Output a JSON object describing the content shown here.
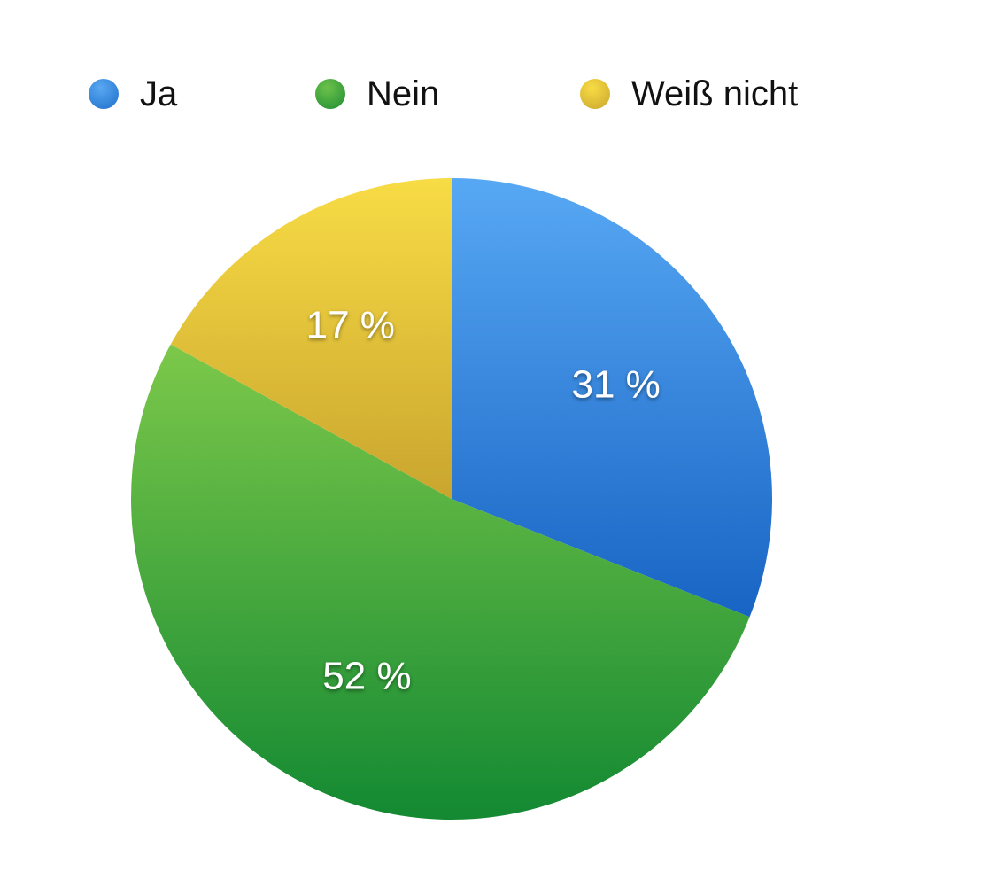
{
  "chart_data": {
    "type": "pie",
    "title": "",
    "legend_position": "top",
    "categories": [
      "Ja",
      "Nein",
      "Weiß nicht"
    ],
    "values": [
      31,
      52,
      17
    ],
    "data_labels": [
      "31 %",
      "52 %",
      "17 %"
    ],
    "colors": [
      "#2f86db",
      "#3aa33f",
      "#e6c53a"
    ],
    "start_angle_deg": 0,
    "direction": "clockwise"
  }
}
